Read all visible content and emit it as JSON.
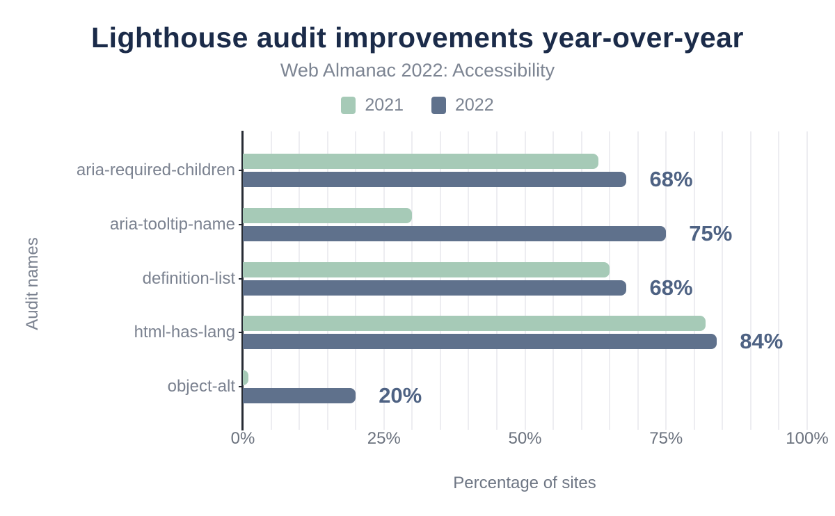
{
  "title": "Lighthouse audit improvements year-over-year",
  "subtitle": "Web Almanac 2022: Accessibility",
  "y_axis_title": "Audit names",
  "x_axis_title": "Percentage of sites",
  "legend": {
    "items": [
      {
        "label": "2021",
        "color": "#a6cab7"
      },
      {
        "label": "2022",
        "color": "#5f718c"
      }
    ]
  },
  "colors": {
    "title": "#1b2b49",
    "subtitle": "#7c8492",
    "axis_text": "#7b8290",
    "tick_text": "#6b727e",
    "value_label": "#4e6283",
    "gridline": "#ededf1",
    "axis_line": "#262b33",
    "bar_2021": "#a6cab7",
    "bar_2022": "#5f718c",
    "background": "#ffffff"
  },
  "chart_data": {
    "type": "bar",
    "orientation": "horizontal",
    "title": "Lighthouse audit improvements year-over-year",
    "subtitle": "Web Almanac 2022: Accessibility",
    "xlabel": "Percentage of sites",
    "ylabel": "Audit names",
    "categories": [
      "aria-required-children",
      "aria-tooltip-name",
      "definition-list",
      "html-has-lang",
      "object-alt"
    ],
    "series": [
      {
        "name": "2021",
        "color": "#a6cab7",
        "values": [
          63,
          30,
          65,
          82,
          1
        ]
      },
      {
        "name": "2022",
        "color": "#5f718c",
        "values": [
          68,
          75,
          68,
          84,
          20
        ]
      }
    ],
    "value_labels": [
      "68%",
      "75%",
      "68%",
      "84%",
      "20%"
    ],
    "xlim": [
      0,
      100
    ],
    "x_ticks": [
      {
        "value": 0,
        "label": "0%"
      },
      {
        "value": 25,
        "label": "25%"
      },
      {
        "value": 50,
        "label": "50%"
      },
      {
        "value": 75,
        "label": "75%"
      },
      {
        "value": 100,
        "label": "100%"
      }
    ],
    "grid_step": 5,
    "grid": true,
    "legend_position": "top"
  }
}
